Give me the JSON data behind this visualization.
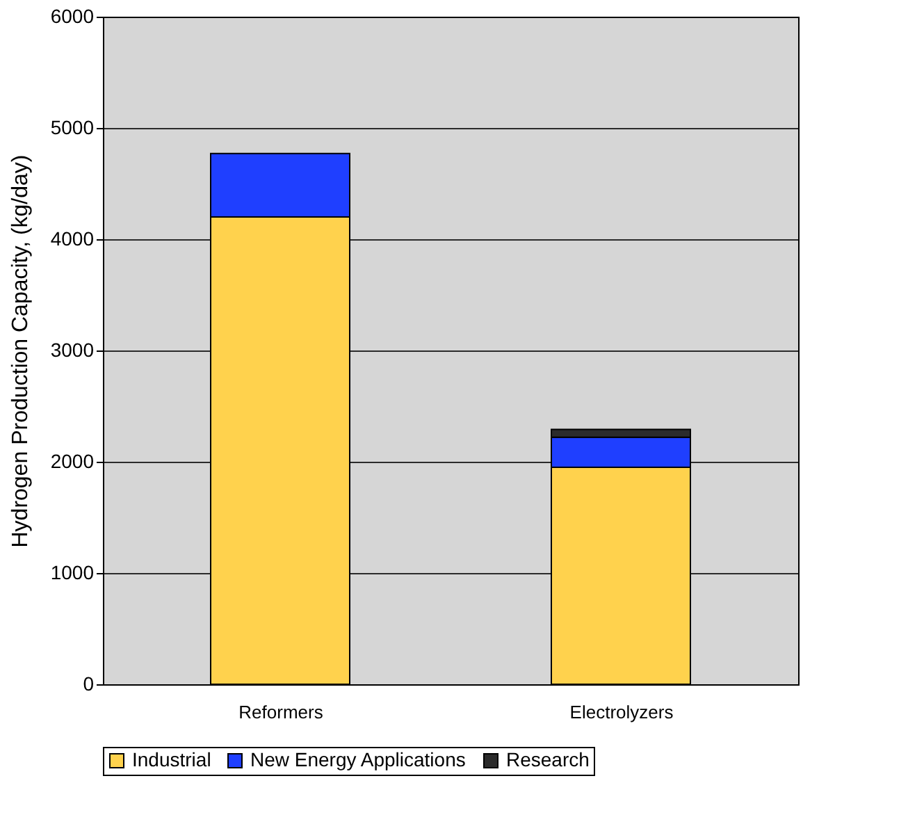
{
  "chart_data": {
    "type": "bar",
    "stacked": true,
    "ylabel": "Hydrogen Production Capacity, (kg/day)",
    "categories": [
      "Reformers",
      "Electrolyzers"
    ],
    "series": [
      {
        "name": "Industrial",
        "color": "#ffd24d",
        "values": [
          4200,
          1950
        ]
      },
      {
        "name": "New Energy Applications",
        "color": "#1f3fff",
        "values": [
          570,
          270
        ]
      },
      {
        "name": "Research",
        "color": "#2b2b2b",
        "values": [
          null,
          70
        ]
      }
    ],
    "ylim": [
      0,
      6000
    ],
    "yticks": [
      0,
      1000,
      2000,
      3000,
      4000,
      5000,
      6000
    ],
    "grid": "y",
    "legend": "bottom"
  }
}
